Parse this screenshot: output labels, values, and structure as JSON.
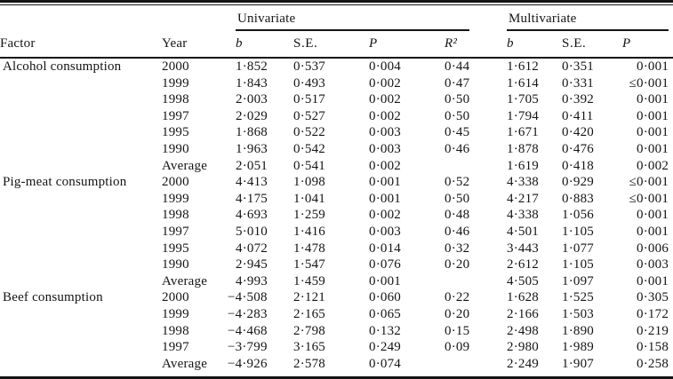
{
  "table": {
    "groups": [
      {
        "label": "Univariate"
      },
      {
        "label": "Multivariate"
      }
    ],
    "columns": [
      "Factor",
      "Year",
      "b",
      "S.E.",
      "P",
      "R²",
      "b",
      "S.E.",
      "P"
    ],
    "rows": [
      [
        "Alcohol consumption",
        "2000",
        "1·852",
        "0·537",
        "0·004",
        "0·44",
        "1·612",
        "0·351",
        "0·001"
      ],
      [
        "",
        "1999",
        "1·843",
        "0·493",
        "0·002",
        "0·47",
        "1·614",
        "0·331",
        "≤0·001"
      ],
      [
        "",
        "1998",
        "2·003",
        "0·517",
        "0·002",
        "0·50",
        "1·705",
        "0·392",
        "0·001"
      ],
      [
        "",
        "1997",
        "2·029",
        "0·527",
        "0·002",
        "0·50",
        "1·794",
        "0·411",
        "0·001"
      ],
      [
        "",
        "1995",
        "1·868",
        "0·522",
        "0·003",
        "0·45",
        "1·671",
        "0·420",
        "0·001"
      ],
      [
        "",
        "1990",
        "1·963",
        "0·542",
        "0·003",
        "0·46",
        "1·878",
        "0·476",
        "0·001"
      ],
      [
        "",
        "Average",
        "2·051",
        "0·541",
        "0·002",
        "",
        "1·619",
        "0·418",
        "0·002"
      ],
      [
        "Pig-meat consumption",
        "2000",
        "4·413",
        "1·098",
        "0·001",
        "0·52",
        "4·338",
        "0·929",
        "≤0·001"
      ],
      [
        "",
        "1999",
        "4·175",
        "1·041",
        "0·001",
        "0·50",
        "4·217",
        "0·883",
        "≤0·001"
      ],
      [
        "",
        "1998",
        "4·693",
        "1·259",
        "0·002",
        "0·48",
        "4·338",
        "1·056",
        "0·001"
      ],
      [
        "",
        "1997",
        "5·010",
        "1·416",
        "0·003",
        "0·46",
        "4·501",
        "1·105",
        "0·001"
      ],
      [
        "",
        "1995",
        "4·072",
        "1·478",
        "0·014",
        "0·32",
        "3·443",
        "1·077",
        "0·006"
      ],
      [
        "",
        "1990",
        "2·945",
        "1·547",
        "0·076",
        "0·20",
        "2·612",
        "1·105",
        "0·003"
      ],
      [
        "",
        "Average",
        "4·993",
        "1·459",
        "0·001",
        "",
        "4·505",
        "1·097",
        "0·001"
      ],
      [
        "Beef consumption",
        "2000",
        "−4·508",
        "2·121",
        "0·060",
        "0·22",
        "1·628",
        "1·525",
        "0·305"
      ],
      [
        "",
        "1999",
        "−4·283",
        "2·165",
        "0·065",
        "0·20",
        "2·166",
        "1·503",
        "0·172"
      ],
      [
        "",
        "1998",
        "−4·468",
        "2·798",
        "0·132",
        "0·15",
        "2·498",
        "1·890",
        "0·219"
      ],
      [
        "",
        "1997",
        "−3·799",
        "3·165",
        "0·249",
        "0·09",
        "2·980",
        "1·989",
        "0·158"
      ],
      [
        "",
        "Average",
        "−4·926",
        "2·578",
        "0·074",
        "",
        "2·249",
        "1·907",
        "0·258"
      ]
    ]
  }
}
